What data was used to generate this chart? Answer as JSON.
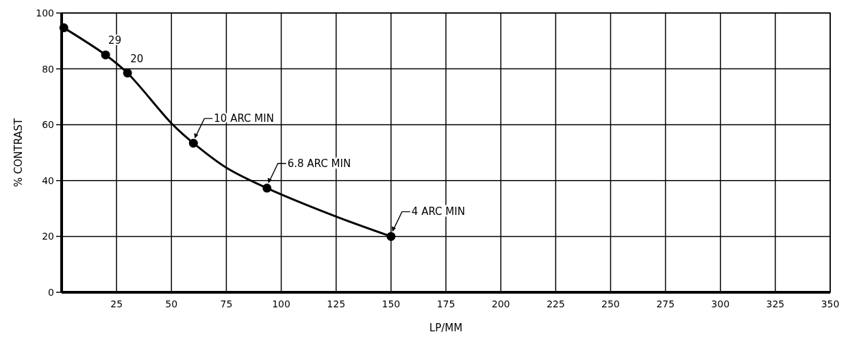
{
  "chart_data": {
    "type": "line",
    "xlabel": "LP/MM",
    "ylabel": "% CONTRAST",
    "xlim": [
      0,
      350
    ],
    "ylim": [
      0,
      100
    ],
    "xticks": [
      {
        "value": 0,
        "label": null
      },
      25,
      50,
      75,
      100,
      125,
      150,
      175,
      200,
      225,
      250,
      275,
      300,
      325,
      350
    ],
    "yticks": [
      0,
      20,
      40,
      60,
      80,
      100
    ],
    "grid": true,
    "series": [
      {
        "color": "#000000",
        "marker": "none",
        "x": [
          1,
          20,
          30,
          50.5,
          60,
          75,
          93.5,
          125.4,
          150
        ],
        "values": [
          94.7,
          85,
          78.5,
          60.1,
          53.4,
          44.6,
          37.3,
          27,
          20
        ]
      },
      {
        "type": "scatter",
        "color": "#000000",
        "marker": "circle",
        "x": [
          1,
          20,
          30,
          60,
          93.5,
          150
        ],
        "values": [
          94.7,
          85,
          78.5,
          53.4,
          37.3,
          20
        ]
      }
    ],
    "annotations": [
      {
        "text": "29",
        "x": 20,
        "y": 85
      },
      {
        "text": "20",
        "x": 30,
        "y": 78.5
      },
      {
        "text": "10 ARC MIN",
        "x": 60,
        "y": 53.4
      },
      {
        "text": "6.8 ARC MIN",
        "x": 93.5,
        "y": 37.3
      },
      {
        "text": "4 ARC MIN",
        "x": 150,
        "y": 20
      }
    ]
  }
}
